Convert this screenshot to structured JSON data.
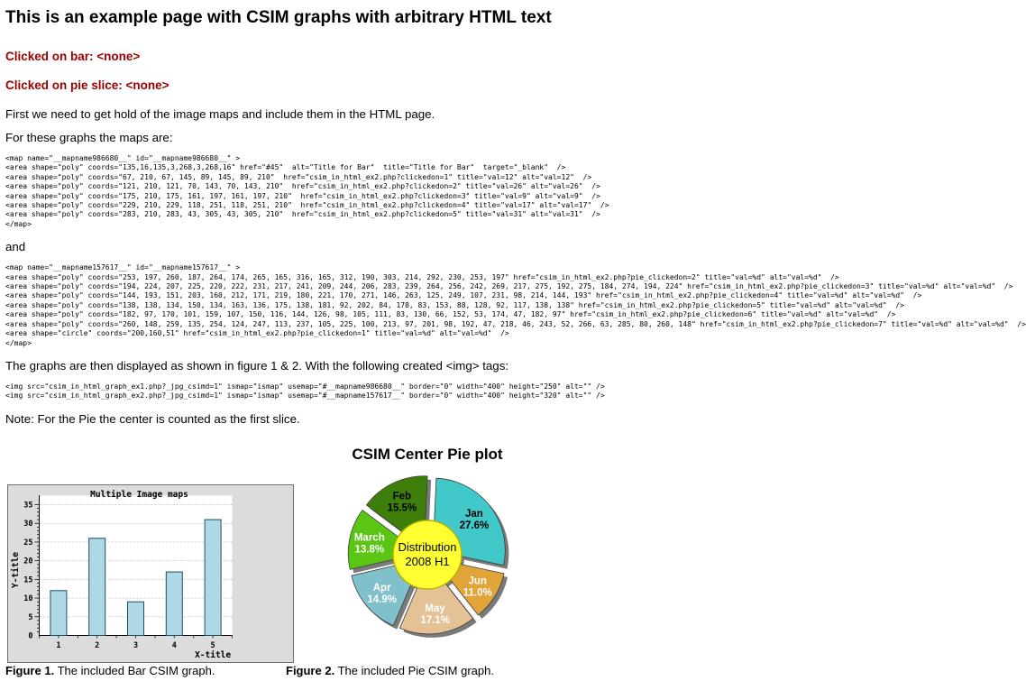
{
  "page": {
    "title": "This is an example page with CSIM graphs with arbitrary HTML text",
    "status_bar": "Clicked on bar: <none>",
    "status_pie": "Clicked on pie slice: <none>",
    "para_intro": "First we need to get hold of the image maps and include them in the HTML page.",
    "para_maps": "For these graphs the maps are:",
    "para_and": "and",
    "para_display": "The graphs are then displayed as shown in figure 1 & 2. With the following created <img> tags:",
    "para_note": "Note: For the Pie the center is counted as the first slice.",
    "accent_color": "#9b0000",
    "code_map_bar": "<map name=\"__mapname986680__\" id=\"__mapname986680__\" >\n<area shape=\"poly\" coords=\"135,16,135,3,268,3,268,16\" href=\"#45\"  alt=\"Title for Bar\"  title=\"Title for Bar\"  target=\"_blank\"  />\n<area shape=\"poly\" coords=\"67, 210, 67, 145, 89, 145, 89, 210\"  href=\"csim_in_html_ex2.php?clickedon=1\" title=\"val=12\" alt=\"val=12\"  />\n<area shape=\"poly\" coords=\"121, 210, 121, 70, 143, 70, 143, 210\"  href=\"csim_in_html_ex2.php?clickedon=2\" title=\"val=26\" alt=\"val=26\"  />\n<area shape=\"poly\" coords=\"175, 210, 175, 161, 197, 161, 197, 210\"  href=\"csim_in_html_ex2.php?clickedon=3\" title=\"val=9\" alt=\"val=9\"  />\n<area shape=\"poly\" coords=\"229, 210, 229, 118, 251, 118, 251, 210\"  href=\"csim_in_html_ex2.php?clickedon=4\" title=\"val=17\" alt=\"val=17\"  />\n<area shape=\"poly\" coords=\"283, 210, 283, 43, 305, 43, 305, 210\"  href=\"csim_in_html_ex2.php?clickedon=5\" title=\"val=31\" alt=\"val=31\"  />\n</map>",
    "code_map_pie": "<map name=\"__mapname157617__\" id=\"__mapname157617__\" >\n<area shape=\"poly\" coords=\"253, 197, 260, 187, 264, 174, 265, 165, 316, 165, 312, 190, 303, 214, 292, 230, 253, 197\" href=\"csim_in_html_ex2.php?pie_clickedon=2\" title=\"val=%d\" alt=\"val=%d\"  />\n<area shape=\"poly\" coords=\"194, 224, 207, 225, 220, 222, 231, 217, 241, 209, 244, 206, 283, 239, 264, 256, 242, 269, 217, 275, 192, 275, 184, 274, 194, 224\" href=\"csim_in_html_ex2.php?pie_clickedon=3\" title=\"val=%d\" alt=\"val=%d\"  />\n<area shape=\"poly\" coords=\"144, 193, 151, 203, 160, 212, 171, 219, 180, 221, 170, 271, 146, 263, 125, 249, 107, 231, 98, 214, 144, 193\" href=\"csim_in_html_ex2.php?pie_clickedon=4\" title=\"val=%d\" alt=\"val=%d\"  />\n<area shape=\"poly\" coords=\"138, 138, 134, 150, 134, 163, 136, 175, 138, 181, 92, 202, 84, 178, 83, 153, 88, 128, 92, 117, 138, 138\" href=\"csim_in_html_ex2.php?pie_clickedon=5\" title=\"val=%d\" alt=\"val=%d\"  />\n<area shape=\"poly\" coords=\"182, 97, 170, 101, 159, 107, 150, 116, 144, 126, 98, 105, 111, 83, 130, 66, 152, 53, 174, 47, 182, 97\" href=\"csim_in_html_ex2.php?pie_clickedon=6\" title=\"val=%d\" alt=\"val=%d\"  />\n<area shape=\"poly\" coords=\"260, 148, 259, 135, 254, 124, 247, 113, 237, 105, 225, 100, 213, 97, 201, 98, 192, 47, 218, 46, 243, 52, 266, 63, 285, 80, 260, 148\" href=\"csim_in_html_ex2.php?pie_clickedon=7\" title=\"val=%d\" alt=\"val=%d\"  />\n<area shape=\"circle\" coords=\"200,160,51\" href=\"csim_in_html_ex2.php?pie_clickedon=1\" title=\"val=%d\" alt=\"val=%d\"  />\n</map>",
    "code_img_tags": "<img src=\"csim_in_html_graph_ex1.php?_jpg_csimd=1\" ismap=\"ismap\" usemap=\"#__mapname986680__\" border=\"0\" width=\"400\" height=\"250\" alt=\"\" />\n<img src=\"csim_in_html_graph_ex2.php?_jpg_csimd=1\" ismap=\"ismap\" usemap=\"#__mapname157617__\" border=\"0\" width=\"400\" height=\"320\" alt=\"\" />",
    "captions": {
      "fig1_label": "Figure 1.",
      "fig1_text": " The included Bar CSIM graph.",
      "fig2_label": "Figure 2.",
      "fig2_text": " The included Pie CSIM graph."
    }
  },
  "chart_data": [
    {
      "type": "bar",
      "title": "Multiple Image maps",
      "xlabel": "X-title",
      "ylabel": "Y-title",
      "categories": [
        "1",
        "2",
        "3",
        "4",
        "5"
      ],
      "values": [
        12,
        26,
        9,
        17,
        31
      ],
      "ylim": [
        0,
        35
      ],
      "ytick_step": 5,
      "grid": true,
      "colors": {
        "background": "#dcdcdc",
        "plot": "#ffffff",
        "frame": "#6e6e6e",
        "bar_fill": "#afd8e7",
        "bar_border": "#1e4c63",
        "grid": "#c9c9c9"
      }
    },
    {
      "type": "pie",
      "title": "CSIM Center Pie plot",
      "center_label_line1": "Distribution",
      "center_label_line2": "2008 H1",
      "center_color": "#ffff32",
      "center_border": "#b3b300",
      "shadow_color": "#7a7a7a",
      "start_angle": -12,
      "slices": [
        {
          "label": "Jan",
          "pct": 27.6,
          "color": "#41c8c8",
          "text_color": "#000000"
        },
        {
          "label": "Feb",
          "pct": 15.5,
          "color": "#3e7f0b",
          "text_color": "#000000"
        },
        {
          "label": "March",
          "pct": 13.8,
          "color": "#5ac513",
          "text_color": "#ffffff"
        },
        {
          "label": "Apr",
          "pct": 14.9,
          "color": "#7fc0cb",
          "text_color": "#ffffff"
        },
        {
          "label": "May",
          "pct": 17.1,
          "color": "#e5c295",
          "text_color": "#ffffff"
        },
        {
          "label": "Jun",
          "pct": 11.0,
          "color": "#e0a438",
          "text_color": "#ffffff"
        }
      ]
    }
  ]
}
